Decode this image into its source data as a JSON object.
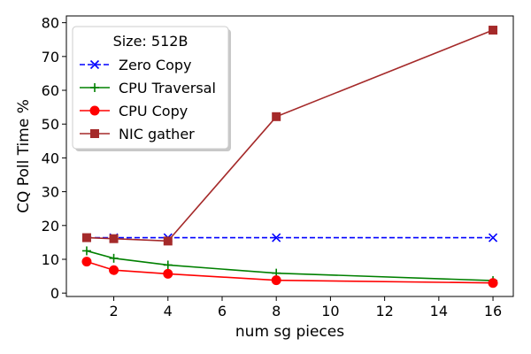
{
  "chart_data": {
    "type": "line",
    "title": "",
    "xlabel": "num sg pieces",
    "ylabel": "CQ Poll Time %",
    "xlim": [
      0.25,
      16.75
    ],
    "ylim": [
      -1,
      82
    ],
    "xticks": [
      2,
      4,
      6,
      8,
      10,
      12,
      14,
      16
    ],
    "yticks": [
      0,
      10,
      20,
      30,
      40,
      50,
      60,
      70,
      80
    ],
    "grid": false,
    "legend": {
      "title": "Size: 512B",
      "placement": "top-left"
    },
    "series": [
      {
        "name": "Zero Copy",
        "color": "#0000ff",
        "linestyle": "dashed",
        "marker": "x",
        "x": [
          1,
          2,
          4,
          8,
          16
        ],
        "y": [
          16.4,
          16.4,
          16.4,
          16.4,
          16.4
        ]
      },
      {
        "name": "CPU Traversal",
        "color": "#008000",
        "linestyle": "solid",
        "marker": "plus",
        "x": [
          1,
          2,
          4,
          8,
          16
        ],
        "y": [
          12.5,
          10.3,
          8.3,
          5.9,
          3.7
        ]
      },
      {
        "name": "CPU Copy",
        "color": "#ff0000",
        "linestyle": "solid",
        "marker": "circle",
        "x": [
          1,
          2,
          4,
          8,
          16
        ],
        "y": [
          9.3,
          6.8,
          5.7,
          3.8,
          3.0
        ]
      },
      {
        "name": "NIC gather",
        "color": "#a52a2a",
        "linestyle": "solid",
        "marker": "square",
        "x": [
          1,
          2,
          4,
          8,
          16
        ],
        "y": [
          16.4,
          16.1,
          15.4,
          52.2,
          77.8
        ]
      }
    ]
  }
}
